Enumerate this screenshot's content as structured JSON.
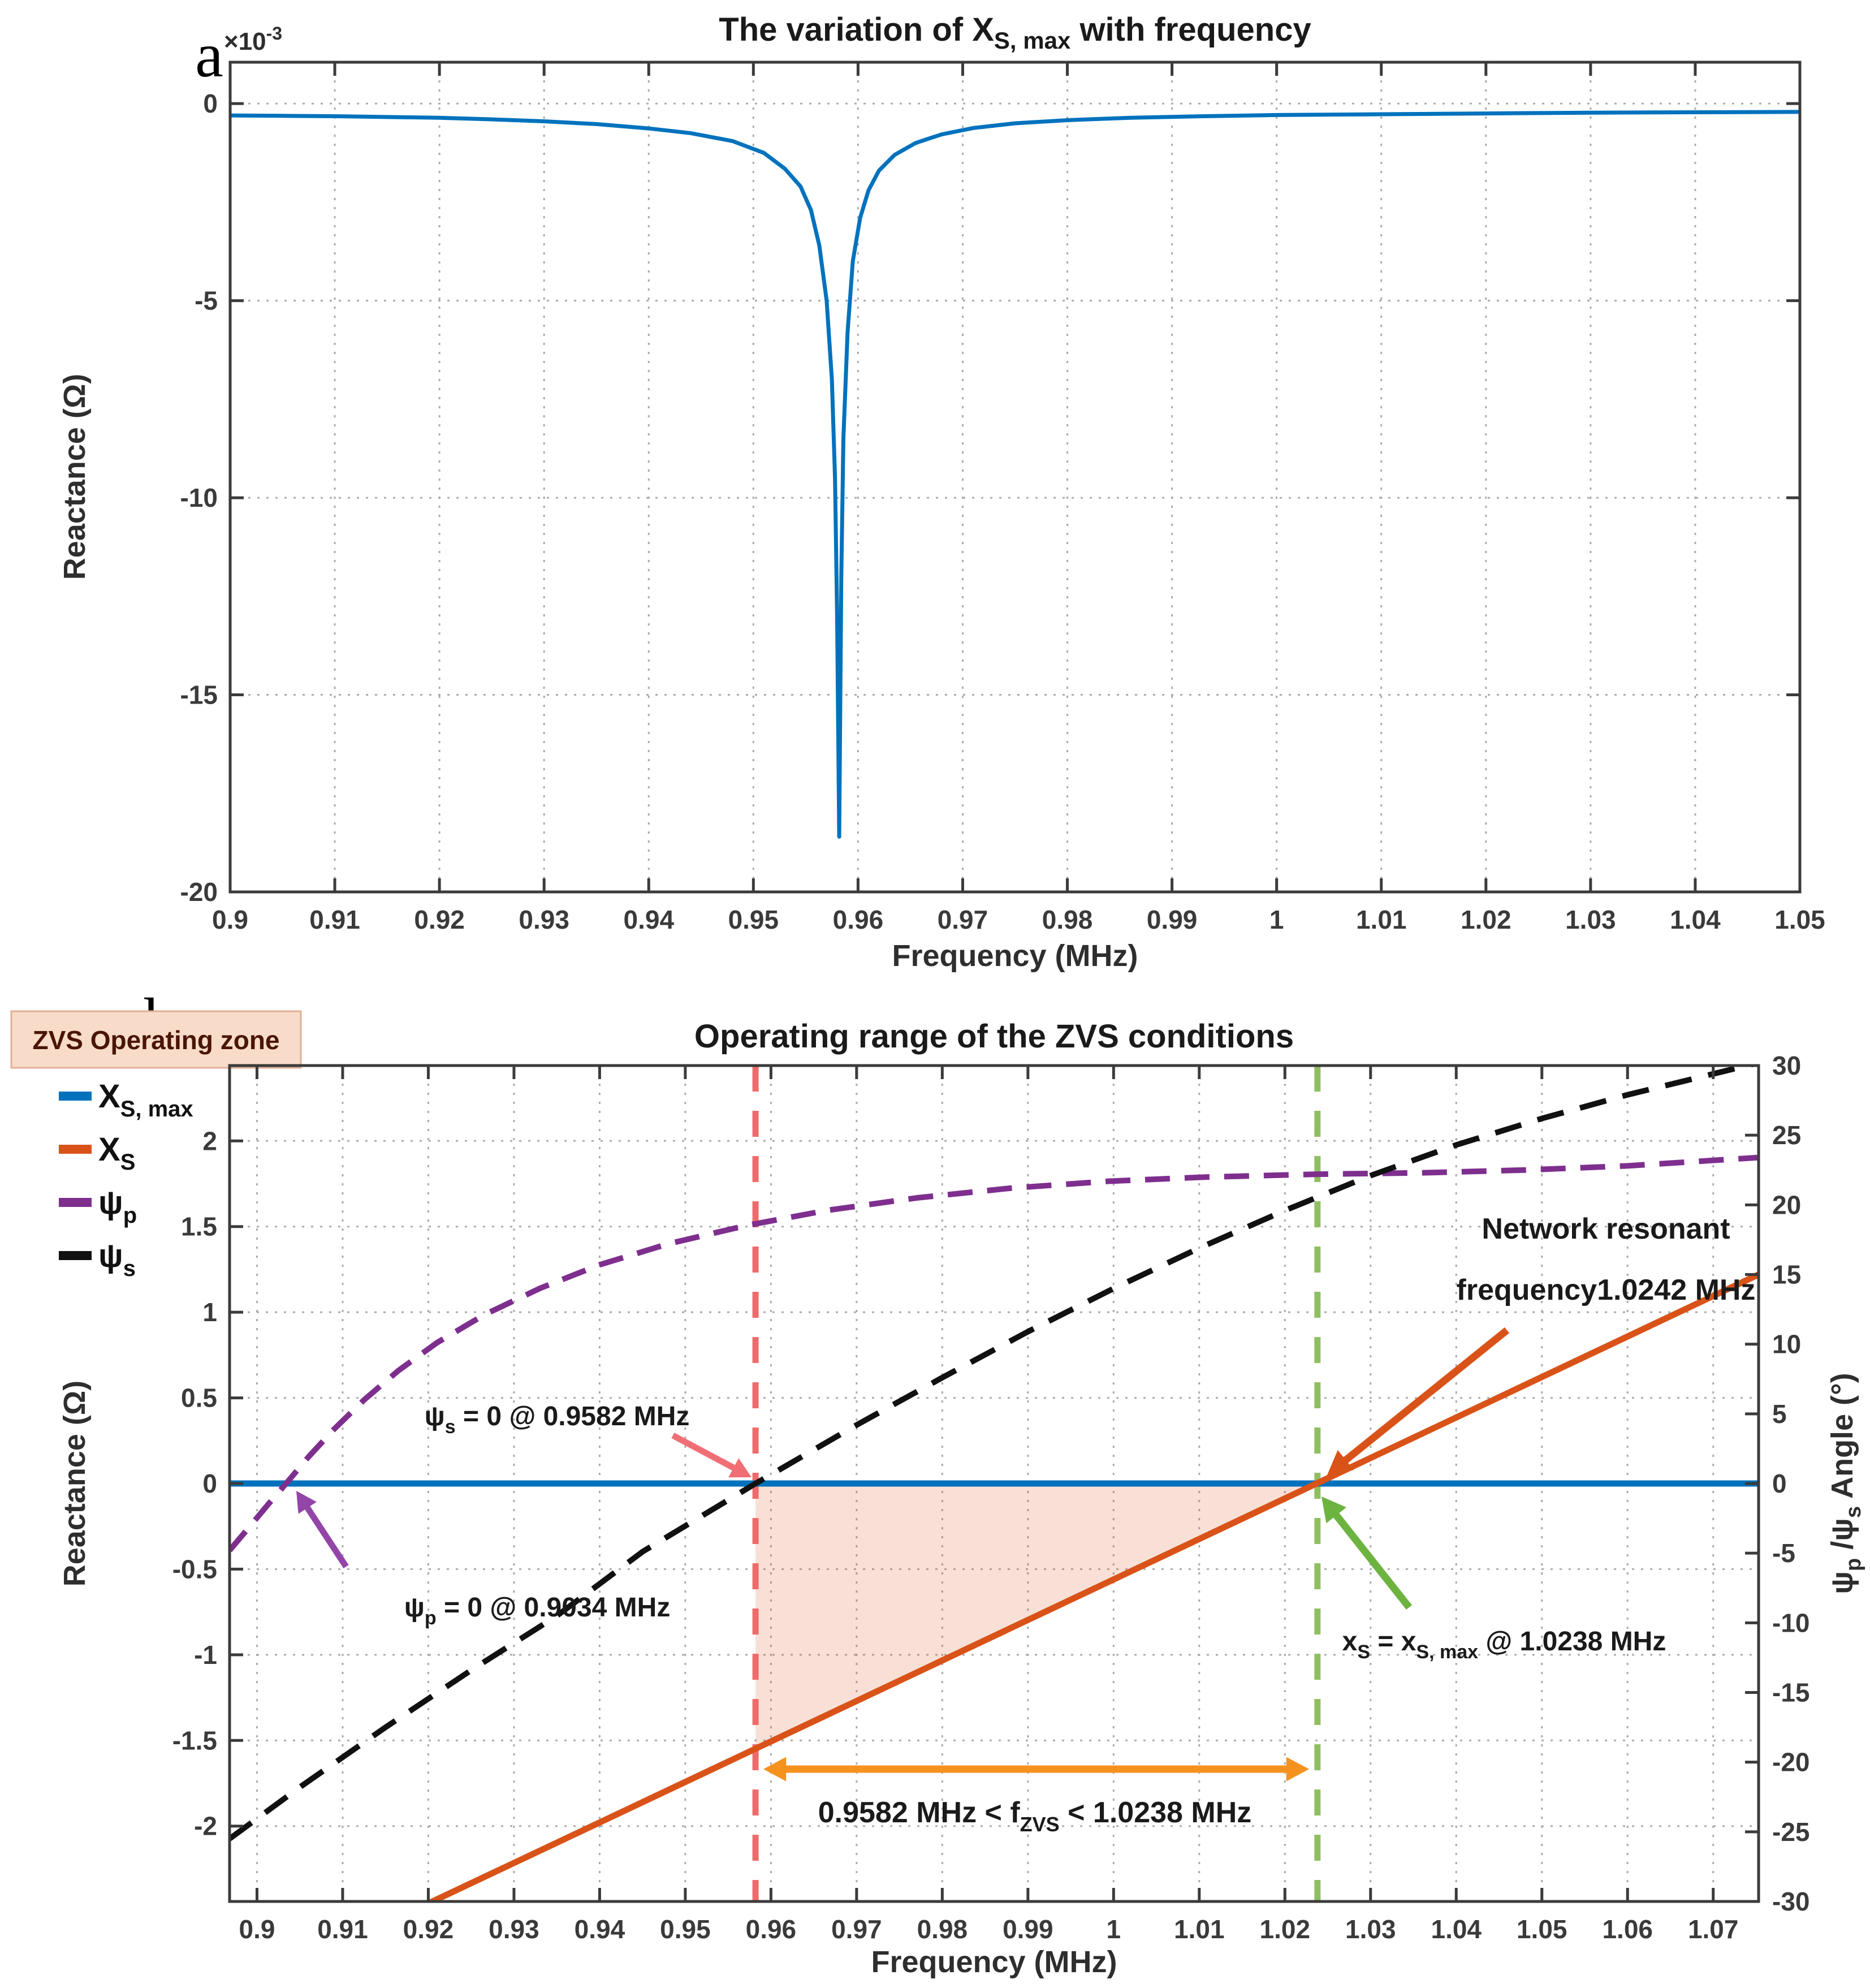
{
  "panels": {
    "a": "a",
    "b": "b"
  },
  "chart_a": {
    "title": {
      "pre": "The variation of X",
      "sub": "S, max",
      "post": " with frequency"
    },
    "offset_label": {
      "base": "×10",
      "exp": "-3"
    },
    "xlabel": "Frequency (MHz)",
    "ylabel": "Reactance (Ω)",
    "x_tick_labels": [
      "0.9",
      "0.91",
      "0.92",
      "0.93",
      "0.94",
      "0.95",
      "0.96",
      "0.97",
      "0.98",
      "0.99",
      "1",
      "1.01",
      "1.02",
      "1.03",
      "1.04",
      "1.05"
    ],
    "y_tick_labels": [
      "0",
      "-5",
      "-10",
      "-15",
      "-20"
    ]
  },
  "chart_b": {
    "title": "Operating range of the ZVS conditions",
    "xlabel": "Frequency (MHz)",
    "ylabel_left": "Reactance (Ω)",
    "ylabel_right": {
      "psi1": "ψ",
      "sub1": "p",
      "mid": " /ψ",
      "sub2": "s",
      "post": " Angle (°)"
    },
    "zvs_box_label": "ZVS Operating zone",
    "zvs_box_fill": "#F8DCC9",
    "zvs_box_border": "#E0AF97",
    "x_tick_labels": [
      "0.9",
      "0.91",
      "0.92",
      "0.93",
      "0.94",
      "0.95",
      "0.96",
      "0.97",
      "0.98",
      "0.99",
      "1",
      "1.01",
      "1.02",
      "1.03",
      "1.04",
      "1.05",
      "1.06",
      "1.07"
    ],
    "y_left_tick_labels": [
      "2",
      "1.5",
      "1",
      "0.5",
      "0",
      "-0.5",
      "-1",
      "-1.5",
      "-2"
    ],
    "y_right_tick_labels": [
      "30",
      "25",
      "20",
      "15",
      "10",
      "5",
      "0",
      "-5",
      "-10",
      "-15",
      "-20",
      "-25",
      "-30"
    ],
    "legend": [
      {
        "symbol_color": "#0072BD",
        "main": "X",
        "sub": "S, max"
      },
      {
        "symbol_color": "#D95319",
        "main": "X",
        "sub": "S"
      },
      {
        "symbol_color": "#7E2F8E",
        "main": "ψ",
        "sub": "p"
      },
      {
        "symbol_color": "#111111",
        "main": "ψ",
        "sub": "s"
      }
    ],
    "annotations": {
      "psi_s_zero": {
        "pre": "ψ",
        "sub": "s",
        "post": " = 0 @ 0.9582 MHz",
        "color": "#EF6F74"
      },
      "psi_p_zero": {
        "pre": "ψ",
        "sub": "p",
        "post": " = 0 @ 0.9034 MHz",
        "color": "#9345A8"
      },
      "network_resonant": {
        "line1": "Network resonant",
        "line2": "frequency1.0242 MHz",
        "color": "#D95319"
      },
      "xs_max": {
        "p1": "x",
        "s1": "S",
        "p2": " = x",
        "s2": "S, max",
        "p3": " @ 1.0238 MHz",
        "color": "#6DB33F"
      },
      "zvs_range": {
        "p1": "0.9582 MHz < f",
        "s1": "ZVS",
        "p2": " < 1.0238 MHz",
        "color": "#F5921E"
      }
    }
  },
  "chart_data": [
    {
      "type": "line",
      "panel": "a",
      "title": "The variation of X_S,max with frequency",
      "xlabel": "Frequency (MHz)",
      "ylabel": "Reactance (Ω)",
      "y_units": "×10⁻³ Ω",
      "xlim": [
        0.9,
        1.05
      ],
      "ylim_milli": [
        -20,
        1.05
      ],
      "grid": true,
      "series": [
        {
          "name": "X_S,max",
          "color": "#0072BD",
          "width": 7,
          "points_f_vs_milliohm": [
            [
              0.9,
              -0.3
            ],
            [
              0.905,
              -0.31
            ],
            [
              0.91,
              -0.32
            ],
            [
              0.915,
              -0.34
            ],
            [
              0.92,
              -0.36
            ],
            [
              0.925,
              -0.4
            ],
            [
              0.93,
              -0.45
            ],
            [
              0.935,
              -0.52
            ],
            [
              0.94,
              -0.63
            ],
            [
              0.944,
              -0.75
            ],
            [
              0.948,
              -0.95
            ],
            [
              0.951,
              -1.25
            ],
            [
              0.953,
              -1.65
            ],
            [
              0.9545,
              -2.1
            ],
            [
              0.9555,
              -2.7
            ],
            [
              0.9563,
              -3.6
            ],
            [
              0.957,
              -5.0
            ],
            [
              0.9575,
              -7.0
            ],
            [
              0.9578,
              -9.5
            ],
            [
              0.958,
              -13.0
            ],
            [
              0.9582,
              -18.6
            ],
            [
              0.9584,
              -12.0
            ],
            [
              0.9586,
              -8.5
            ],
            [
              0.959,
              -5.8
            ],
            [
              0.9595,
              -4.0
            ],
            [
              0.9602,
              -2.9
            ],
            [
              0.961,
              -2.2
            ],
            [
              0.962,
              -1.7
            ],
            [
              0.9635,
              -1.3
            ],
            [
              0.9655,
              -1.0
            ],
            [
              0.968,
              -0.78
            ],
            [
              0.971,
              -0.62
            ],
            [
              0.975,
              -0.5
            ],
            [
              0.98,
              -0.42
            ],
            [
              0.986,
              -0.36
            ],
            [
              0.993,
              -0.32
            ],
            [
              1.0,
              -0.29
            ],
            [
              1.01,
              -0.27
            ],
            [
              1.02,
              -0.25
            ],
            [
              1.03,
              -0.23
            ],
            [
              1.04,
              -0.22
            ],
            [
              1.05,
              -0.21
            ]
          ]
        }
      ]
    },
    {
      "type": "line",
      "panel": "b",
      "title": "Operating range of the ZVS conditions",
      "xlabel": "Frequency (MHz)",
      "ylabel_left": "Reactance (Ω)",
      "ylabel_right": "ψp/ψs Angle (°)",
      "xlim": [
        0.8968,
        1.0753
      ],
      "ylim_left": [
        -2.44,
        2.44
      ],
      "ylim_right": [
        -30,
        30
      ],
      "grid": true,
      "legend_position": "outside-top-left",
      "key_values": {
        "psi_s_zero_MHz": 0.9582,
        "psi_p_zero_MHz": 0.9034,
        "network_resonant_MHz": 1.0242,
        "xs_equals_xsmax_MHz": 1.0238,
        "zvs_range_MHz": [
          0.9582,
          1.0238
        ]
      },
      "ref_lines": [
        {
          "x": 0.9582,
          "color": "#EE6B6B",
          "style": "dashed"
        },
        {
          "x": 1.0238,
          "color": "#8FBF5F",
          "style": "dashed"
        }
      ],
      "shaded_zone": {
        "fill": "#D95319",
        "opacity": 0.18,
        "points_f_vs_ohm": [
          [
            0.9582,
            0
          ],
          [
            1.0238,
            0
          ],
          [
            0.9582,
            -1.548
          ]
        ]
      },
      "series": [
        {
          "name": "X_S,max",
          "axis": "left",
          "color": "#0072BD",
          "width": 11,
          "dash": null,
          "points": [
            [
              0.8968,
              0
            ],
            [
              1.0753,
              0
            ]
          ]
        },
        {
          "name": "X_S",
          "axis": "left",
          "color": "#D95319",
          "width": 11,
          "dash": null,
          "points": [
            [
              0.8968,
              -3.0
            ],
            [
              1.0753,
              1.22
            ]
          ]
        },
        {
          "name": "psi_p",
          "axis": "right",
          "color": "#7E2F8E",
          "width": 10,
          "dash": "44 26",
          "points": [
            [
              0.8968,
              -4.8
            ],
            [
              0.899,
              -3.2
            ],
            [
              0.9013,
              -1.5
            ],
            [
              0.9034,
              0
            ],
            [
              0.906,
              1.9
            ],
            [
              0.909,
              3.9
            ],
            [
              0.9125,
              6.0
            ],
            [
              0.9165,
              8.1
            ],
            [
              0.921,
              10.1
            ],
            [
              0.9265,
              12.1
            ],
            [
              0.933,
              14.0
            ],
            [
              0.94,
              15.7
            ],
            [
              0.948,
              17.2
            ],
            [
              0.957,
              18.5
            ],
            [
              0.9665,
              19.6
            ],
            [
              0.977,
              20.5
            ],
            [
              0.988,
              21.2
            ],
            [
              0.9995,
              21.7
            ],
            [
              1.011,
              22.0
            ],
            [
              1.0238,
              22.2
            ],
            [
              1.036,
              22.3
            ],
            [
              1.048,
              22.5
            ],
            [
              1.06,
              22.8
            ],
            [
              1.0753,
              23.4
            ]
          ]
        },
        {
          "name": "psi_s",
          "axis": "right",
          "color": "#111111",
          "width": 10,
          "dash": "48 30",
          "points": [
            [
              0.8968,
              -25.5
            ],
            [
              0.905,
              -21.8
            ],
            [
              0.915,
              -17.5
            ],
            [
              0.925,
              -13.4
            ],
            [
              0.935,
              -9.5
            ],
            [
              0.945,
              -4.9
            ],
            [
              0.9582,
              0
            ],
            [
              0.97,
              4.2
            ],
            [
              0.98,
              7.6
            ],
            [
              0.99,
              10.9
            ],
            [
              1.0,
              14.0
            ],
            [
              1.01,
              16.9
            ],
            [
              1.02,
              19.6
            ],
            [
              1.03,
              22.1
            ],
            [
              1.04,
              24.3
            ],
            [
              1.05,
              26.2
            ],
            [
              1.06,
              27.9
            ],
            [
              1.07,
              29.4
            ],
            [
              1.0753,
              30.2
            ]
          ]
        }
      ]
    }
  ]
}
